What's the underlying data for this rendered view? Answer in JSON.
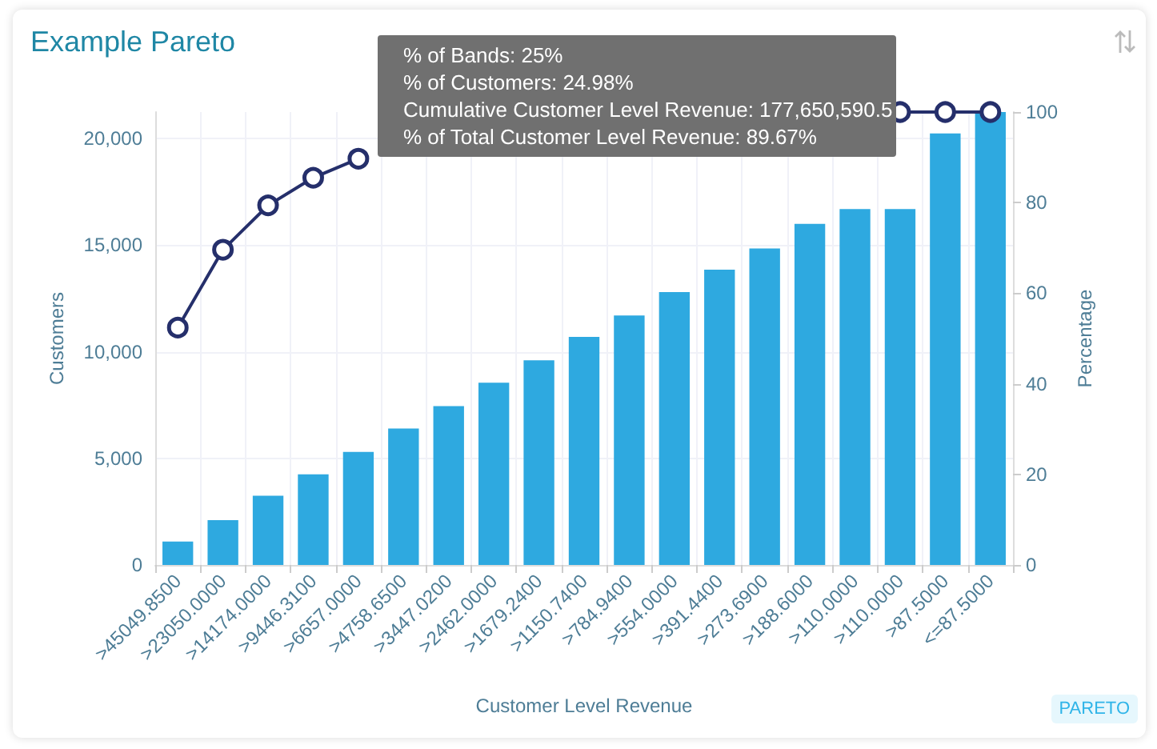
{
  "chart_data": {
    "type": "bar",
    "title": "Example Pareto",
    "xlabel": "Customer Level Revenue",
    "ylabel": "Customers",
    "y2label": "Percentage",
    "categories": [
      ">45049.8500",
      ">23050.0000",
      ">14174.0000",
      ">9446.3100",
      ">6657.0000",
      ">4758.6500",
      ">3447.0200",
      ">2462.0000",
      ">1679.2400",
      ">1150.7400",
      ">784.9400",
      ">554.0000",
      ">391.4400",
      ">273.6900",
      ">188.6000",
      ">110.0000",
      ">110.0000",
      ">87.5000",
      "<=87.5000"
    ],
    "series": [
      {
        "color": "#2ea9e0",
        "values": [
          1100,
          2100,
          3250,
          4250,
          5300,
          6400,
          7450,
          8550,
          9600,
          10700,
          11700,
          12800,
          13850,
          14850,
          16000,
          16700,
          16700,
          20250,
          21250
        ]
      },
      {
        "type": "line",
        "axis": "y2",
        "color": "#252f6b",
        "marker": "circle",
        "values": [
          52.4,
          69.6,
          79.4,
          85.5,
          89.7,
          null,
          null,
          null,
          null,
          null,
          null,
          null,
          null,
          null,
          null,
          null,
          100,
          100,
          100
        ]
      }
    ],
    "ylim": [
      0,
      21250
    ],
    "yticks": [
      {
        "value": 0,
        "label": "0"
      },
      {
        "value": 5000,
        "label": "5,000"
      },
      {
        "value": 10000,
        "label": "10,000"
      },
      {
        "value": 15000,
        "label": "15,000"
      },
      {
        "value": 20000,
        "label": "20,000"
      }
    ],
    "y2lim": [
      0,
      100
    ],
    "y2ticks": [
      0,
      20,
      40,
      60,
      80,
      100
    ],
    "grid": true,
    "annotations": [
      "% of Bands: 25%",
      "% of Customers: 24.98%",
      "Cumulative Customer Level Revenue: 177,650,590.5",
      "% of Total Customer Level Revenue: 89.67%",
      "PARETO"
    ]
  }
}
